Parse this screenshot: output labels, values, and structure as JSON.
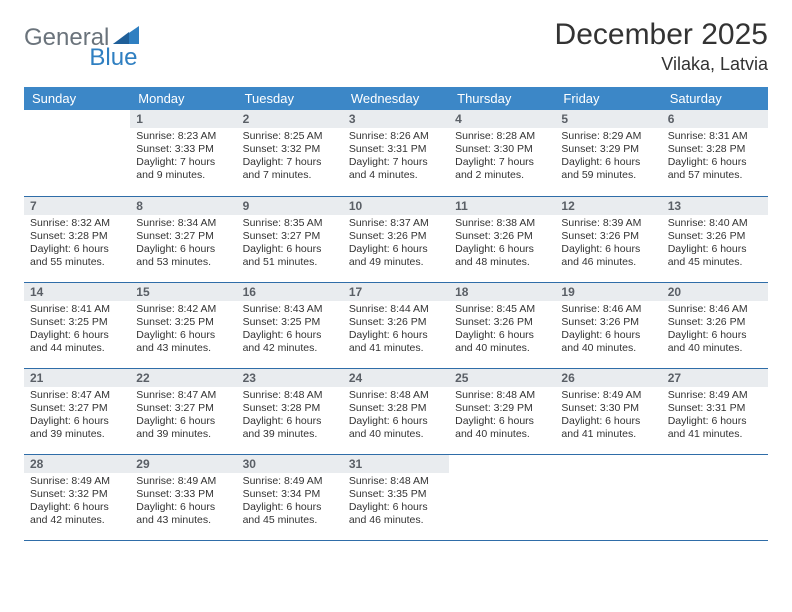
{
  "brand": {
    "part1": "General",
    "part2": "Blue"
  },
  "title": "December 2025",
  "location": "Vilaka, Latvia",
  "colors": {
    "header_bg": "#3c87c7",
    "header_text": "#ffffff",
    "daynum_bg": "#e9ecef",
    "daynum_text": "#5a5f66",
    "row_border": "#2f6da8",
    "body_text": "#333333",
    "brand_gray": "#6a737b",
    "brand_blue": "#2f7fc1"
  },
  "weekdays": [
    "Sunday",
    "Monday",
    "Tuesday",
    "Wednesday",
    "Thursday",
    "Friday",
    "Saturday"
  ],
  "weeks": [
    [
      null,
      {
        "n": "1",
        "sr": "Sunrise: 8:23 AM",
        "ss": "Sunset: 3:33 PM",
        "dl": "Daylight: 7 hours and 9 minutes."
      },
      {
        "n": "2",
        "sr": "Sunrise: 8:25 AM",
        "ss": "Sunset: 3:32 PM",
        "dl": "Daylight: 7 hours and 7 minutes."
      },
      {
        "n": "3",
        "sr": "Sunrise: 8:26 AM",
        "ss": "Sunset: 3:31 PM",
        "dl": "Daylight: 7 hours and 4 minutes."
      },
      {
        "n": "4",
        "sr": "Sunrise: 8:28 AM",
        "ss": "Sunset: 3:30 PM",
        "dl": "Daylight: 7 hours and 2 minutes."
      },
      {
        "n": "5",
        "sr": "Sunrise: 8:29 AM",
        "ss": "Sunset: 3:29 PM",
        "dl": "Daylight: 6 hours and 59 minutes."
      },
      {
        "n": "6",
        "sr": "Sunrise: 8:31 AM",
        "ss": "Sunset: 3:28 PM",
        "dl": "Daylight: 6 hours and 57 minutes."
      }
    ],
    [
      {
        "n": "7",
        "sr": "Sunrise: 8:32 AM",
        "ss": "Sunset: 3:28 PM",
        "dl": "Daylight: 6 hours and 55 minutes."
      },
      {
        "n": "8",
        "sr": "Sunrise: 8:34 AM",
        "ss": "Sunset: 3:27 PM",
        "dl": "Daylight: 6 hours and 53 minutes."
      },
      {
        "n": "9",
        "sr": "Sunrise: 8:35 AM",
        "ss": "Sunset: 3:27 PM",
        "dl": "Daylight: 6 hours and 51 minutes."
      },
      {
        "n": "10",
        "sr": "Sunrise: 8:37 AM",
        "ss": "Sunset: 3:26 PM",
        "dl": "Daylight: 6 hours and 49 minutes."
      },
      {
        "n": "11",
        "sr": "Sunrise: 8:38 AM",
        "ss": "Sunset: 3:26 PM",
        "dl": "Daylight: 6 hours and 48 minutes."
      },
      {
        "n": "12",
        "sr": "Sunrise: 8:39 AM",
        "ss": "Sunset: 3:26 PM",
        "dl": "Daylight: 6 hours and 46 minutes."
      },
      {
        "n": "13",
        "sr": "Sunrise: 8:40 AM",
        "ss": "Sunset: 3:26 PM",
        "dl": "Daylight: 6 hours and 45 minutes."
      }
    ],
    [
      {
        "n": "14",
        "sr": "Sunrise: 8:41 AM",
        "ss": "Sunset: 3:25 PM",
        "dl": "Daylight: 6 hours and 44 minutes."
      },
      {
        "n": "15",
        "sr": "Sunrise: 8:42 AM",
        "ss": "Sunset: 3:25 PM",
        "dl": "Daylight: 6 hours and 43 minutes."
      },
      {
        "n": "16",
        "sr": "Sunrise: 8:43 AM",
        "ss": "Sunset: 3:25 PM",
        "dl": "Daylight: 6 hours and 42 minutes."
      },
      {
        "n": "17",
        "sr": "Sunrise: 8:44 AM",
        "ss": "Sunset: 3:26 PM",
        "dl": "Daylight: 6 hours and 41 minutes."
      },
      {
        "n": "18",
        "sr": "Sunrise: 8:45 AM",
        "ss": "Sunset: 3:26 PM",
        "dl": "Daylight: 6 hours and 40 minutes."
      },
      {
        "n": "19",
        "sr": "Sunrise: 8:46 AM",
        "ss": "Sunset: 3:26 PM",
        "dl": "Daylight: 6 hours and 40 minutes."
      },
      {
        "n": "20",
        "sr": "Sunrise: 8:46 AM",
        "ss": "Sunset: 3:26 PM",
        "dl": "Daylight: 6 hours and 40 minutes."
      }
    ],
    [
      {
        "n": "21",
        "sr": "Sunrise: 8:47 AM",
        "ss": "Sunset: 3:27 PM",
        "dl": "Daylight: 6 hours and 39 minutes."
      },
      {
        "n": "22",
        "sr": "Sunrise: 8:47 AM",
        "ss": "Sunset: 3:27 PM",
        "dl": "Daylight: 6 hours and 39 minutes."
      },
      {
        "n": "23",
        "sr": "Sunrise: 8:48 AM",
        "ss": "Sunset: 3:28 PM",
        "dl": "Daylight: 6 hours and 39 minutes."
      },
      {
        "n": "24",
        "sr": "Sunrise: 8:48 AM",
        "ss": "Sunset: 3:28 PM",
        "dl": "Daylight: 6 hours and 40 minutes."
      },
      {
        "n": "25",
        "sr": "Sunrise: 8:48 AM",
        "ss": "Sunset: 3:29 PM",
        "dl": "Daylight: 6 hours and 40 minutes."
      },
      {
        "n": "26",
        "sr": "Sunrise: 8:49 AM",
        "ss": "Sunset: 3:30 PM",
        "dl": "Daylight: 6 hours and 41 minutes."
      },
      {
        "n": "27",
        "sr": "Sunrise: 8:49 AM",
        "ss": "Sunset: 3:31 PM",
        "dl": "Daylight: 6 hours and 41 minutes."
      }
    ],
    [
      {
        "n": "28",
        "sr": "Sunrise: 8:49 AM",
        "ss": "Sunset: 3:32 PM",
        "dl": "Daylight: 6 hours and 42 minutes."
      },
      {
        "n": "29",
        "sr": "Sunrise: 8:49 AM",
        "ss": "Sunset: 3:33 PM",
        "dl": "Daylight: 6 hours and 43 minutes."
      },
      {
        "n": "30",
        "sr": "Sunrise: 8:49 AM",
        "ss": "Sunset: 3:34 PM",
        "dl": "Daylight: 6 hours and 45 minutes."
      },
      {
        "n": "31",
        "sr": "Sunrise: 8:48 AM",
        "ss": "Sunset: 3:35 PM",
        "dl": "Daylight: 6 hours and 46 minutes."
      },
      null,
      null,
      null
    ]
  ]
}
